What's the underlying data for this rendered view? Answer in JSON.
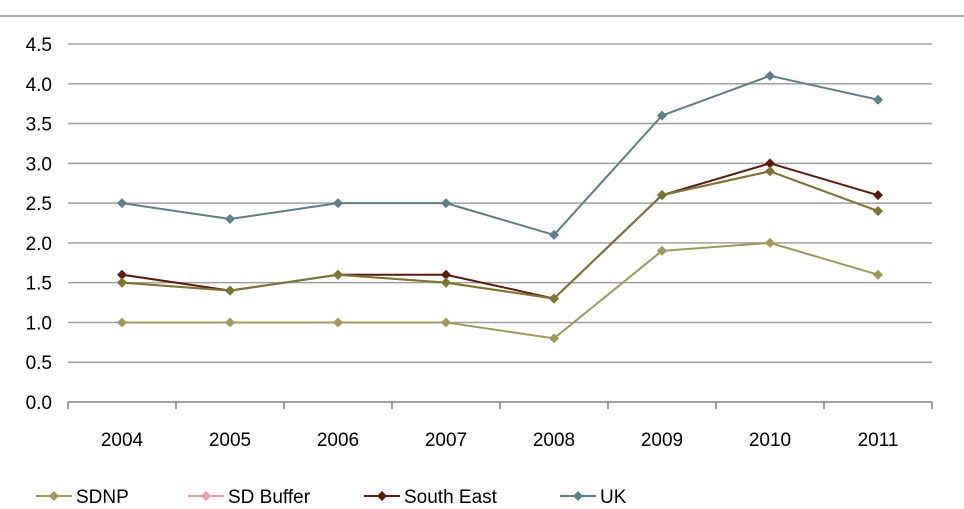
{
  "chart_data": {
    "type": "line",
    "title": "",
    "xlabel": "",
    "ylabel": "",
    "categories": [
      "2004",
      "2005",
      "2006",
      "2007",
      "2008",
      "2009",
      "2010",
      "2011"
    ],
    "ylim": [
      0,
      4.5
    ],
    "y_ticks": [
      "0.0",
      "0.5",
      "1.0",
      "1.5",
      "2.0",
      "2.5",
      "3.0",
      "3.5",
      "4.0",
      "4.5"
    ],
    "grid": "horizontal",
    "legend_position": "bottom",
    "series": [
      {
        "name": "SDNP",
        "color": "#a09a5a",
        "values": [
          1.0,
          1.0,
          1.0,
          1.0,
          0.8,
          1.9,
          2.0,
          1.6
        ]
      },
      {
        "name": "SD Buffer",
        "color": "#e8a0a8",
        "values": [
          1.5,
          1.4,
          1.6,
          1.5,
          1.3,
          2.6,
          2.9,
          2.4
        ]
      },
      {
        "name": "South East",
        "color": "#5c1a10",
        "values": [
          1.6,
          1.4,
          1.6,
          1.6,
          1.3,
          2.6,
          3.0,
          2.6
        ]
      },
      {
        "name": "UK",
        "color": "#5f7f87",
        "values": [
          2.5,
          2.3,
          2.5,
          2.5,
          2.1,
          3.6,
          4.1,
          3.8
        ]
      }
    ],
    "overlay_series": {
      "name": "SD Buffer (overlay)",
      "color": "#7a7532",
      "marker_color": "#7a7532"
    },
    "marker_colors": {
      "SDNP": "#a09a5a",
      "SD Buffer": "#e8a0a8",
      "South East": "#5c1a10",
      "UK": "#5f7f87"
    },
    "rules": {
      "grid": "#a0a0a0",
      "axis": "#808080",
      "top_rule": "#a0b0a8"
    }
  }
}
